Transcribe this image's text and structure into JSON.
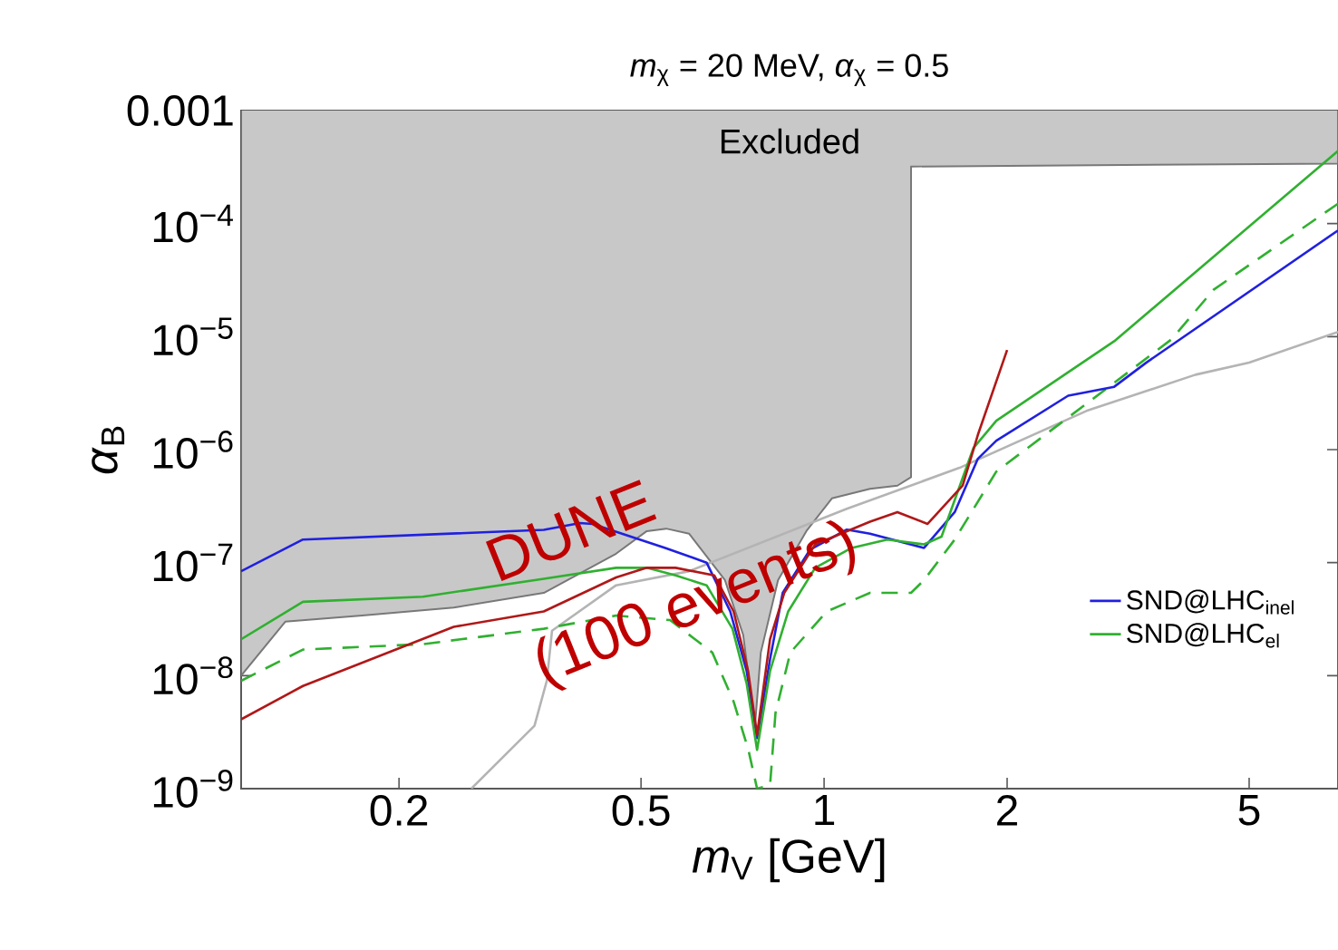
{
  "chart_data": {
    "type": "line",
    "title": "*m*$_{χ}$ = 20 MeV, *α*$_{χ}$ = 0.5",
    "xlabel": "*m*$_{V}$ [GeV]",
    "ylabel": "*α*$_{B}$",
    "log": "xy",
    "legend": "bottom right",
    "xlim": [
      0.11,
      7
    ],
    "ylim": [
      1e-09,
      0.001
    ],
    "xticks": [
      0.2,
      0.5,
      1,
      2,
      5
    ],
    "yticks": [
      {
        "value": 1e-09,
        "label": "10$^{−9}$"
      },
      {
        "value": 1e-08,
        "label": "10$^{−8}$"
      },
      {
        "value": 1e-07,
        "label": "10$^{−7}$"
      },
      {
        "value": 1e-06,
        "label": "10$^{−6}$"
      },
      {
        "value": 1e-05,
        "label": "10$^{−5}$"
      },
      {
        "value": 0.0001,
        "label": "10$^{−4}$"
      },
      0.001
    ],
    "annotations": [
      "Excluded",
      "DUNE",
      "(100 events)"
    ],
    "series": [
      {
        "type": "area",
        "color": "#c8c8c8",
        "x": [
          0.11,
          0.11,
          0.13,
          0.174,
          0.246,
          0.346,
          0.455,
          0.511,
          0.55,
          0.6,
          0.687,
          0.736,
          0.77,
          0.787,
          0.84,
          0.935,
          1.03,
          1.19,
          1.32,
          1.39,
          1.39,
          7,
          7
        ],
        "values": [
          0.001,
          1e-08,
          3e-08,
          3.4e-08,
          4e-08,
          5.4e-08,
          1.2e-07,
          1.9e-07,
          2e-07,
          1.8e-07,
          7e-08,
          2.3e-08,
          3.6e-09,
          1.6e-08,
          7e-08,
          1.9e-07,
          3.7e-07,
          4.5e-07,
          4.8e-07,
          5.7e-07,
          0.00032,
          0.00034,
          0.001
        ]
      },
      {
        "color": "#b4b4b4",
        "x": [
          0.263,
          0.334,
          0.35,
          0.357,
          0.455,
          0.6,
          1.09,
          1.67,
          2.7,
          4.08,
          5.0,
          7
        ],
        "values": [
          1e-09,
          3.6e-09,
          9e-09,
          2.5e-08,
          6.3e-08,
          8.4e-08,
          3e-07,
          6.9e-07,
          2.2e-06,
          4.6e-06,
          5.9e-06,
          1.1e-05
        ]
      },
      {
        "color": "#30b030",
        "line_style": "dashed",
        "x": [
          0.11,
          0.139,
          0.219,
          0.346,
          0.455,
          0.558,
          0.655,
          0.71,
          0.751,
          0.776,
          0.815,
          0.832,
          0.88,
          1.01,
          1.19,
          1.39,
          1.46,
          1.64,
          1.92,
          2.9,
          3.73,
          4.37,
          7
        ],
        "values": [
          9e-09,
          1.7e-08,
          1.9e-08,
          2.6e-08,
          3.4e-08,
          3.1e-08,
          1.6e-08,
          5.9e-09,
          2.2e-09,
          1e-09,
          1.07e-09,
          4.7e-09,
          1.6e-08,
          3.7e-08,
          5.4e-08,
          5.4e-08,
          7e-08,
          1.6e-07,
          6.4e-07,
          3.4e-06,
          9.5e-06,
          2.6e-05,
          0.00015
        ]
      },
      {
        "name": "SND@LHC$_{inel}$",
        "color": "#2020e0",
        "x": [
          0.11,
          0.139,
          0.346,
          0.397,
          0.416,
          0.548,
          0.641,
          0.701,
          0.746,
          0.776,
          0.815,
          0.855,
          0.948,
          1.09,
          1.19,
          1.46,
          1.64,
          1.79,
          1.92,
          2.52,
          3.0,
          3.39,
          7
        ],
        "values": [
          8.4e-08,
          1.6e-07,
          1.95e-07,
          2.24e-07,
          2.2e-07,
          1.35e-07,
          1e-07,
          3.7e-08,
          1.1e-08,
          2.8e-09,
          1.4e-08,
          5.4e-08,
          1.3e-07,
          1.96e-07,
          1.8e-07,
          1.35e-07,
          2.8e-07,
          8.3e-07,
          1.2e-06,
          3e-06,
          3.6e-06,
          5.9e-06,
          8.7e-05
        ]
      },
      {
        "name": "SND@LHC$_{el}$",
        "color": "#30b030",
        "x": [
          0.11,
          0.139,
          0.219,
          0.346,
          0.455,
          0.511,
          0.57,
          0.641,
          0.707,
          0.746,
          0.776,
          0.815,
          0.873,
          0.967,
          1.11,
          1.27,
          1.46,
          1.56,
          1.76,
          1.92,
          3.0,
          7
        ],
        "values": [
          2.1e-08,
          4.5e-08,
          5e-08,
          7.2e-08,
          9e-08,
          9e-08,
          7.7e-08,
          6.3e-08,
          2.6e-08,
          8.5e-09,
          2.2e-09,
          1.1e-08,
          3.7e-08,
          9e-08,
          1.35e-07,
          1.6e-07,
          1.45e-07,
          1.7e-07,
          1.03e-06,
          1.8e-06,
          9.1e-06,
          0.00044
        ]
      },
      {
        "color": "#b01818",
        "x": [
          0.11,
          0.139,
          0.246,
          0.346,
          0.455,
          0.511,
          0.57,
          0.66,
          0.71,
          0.75,
          0.776,
          0.815,
          0.86,
          0.967,
          1.19,
          1.32,
          1.48,
          1.69,
          1.79,
          2.0
        ],
        "values": [
          4.1e-09,
          8.1e-09,
          2.7e-08,
          3.7e-08,
          7.4e-08,
          9e-08,
          9e-08,
          7.7e-08,
          3.7e-08,
          1.1e-08,
          3e-09,
          2.1e-08,
          5.4e-08,
          1.45e-07,
          2.3e-07,
          2.8e-07,
          2.2e-07,
          4.8e-07,
          1.35e-06,
          7.6e-06
        ]
      }
    ]
  }
}
